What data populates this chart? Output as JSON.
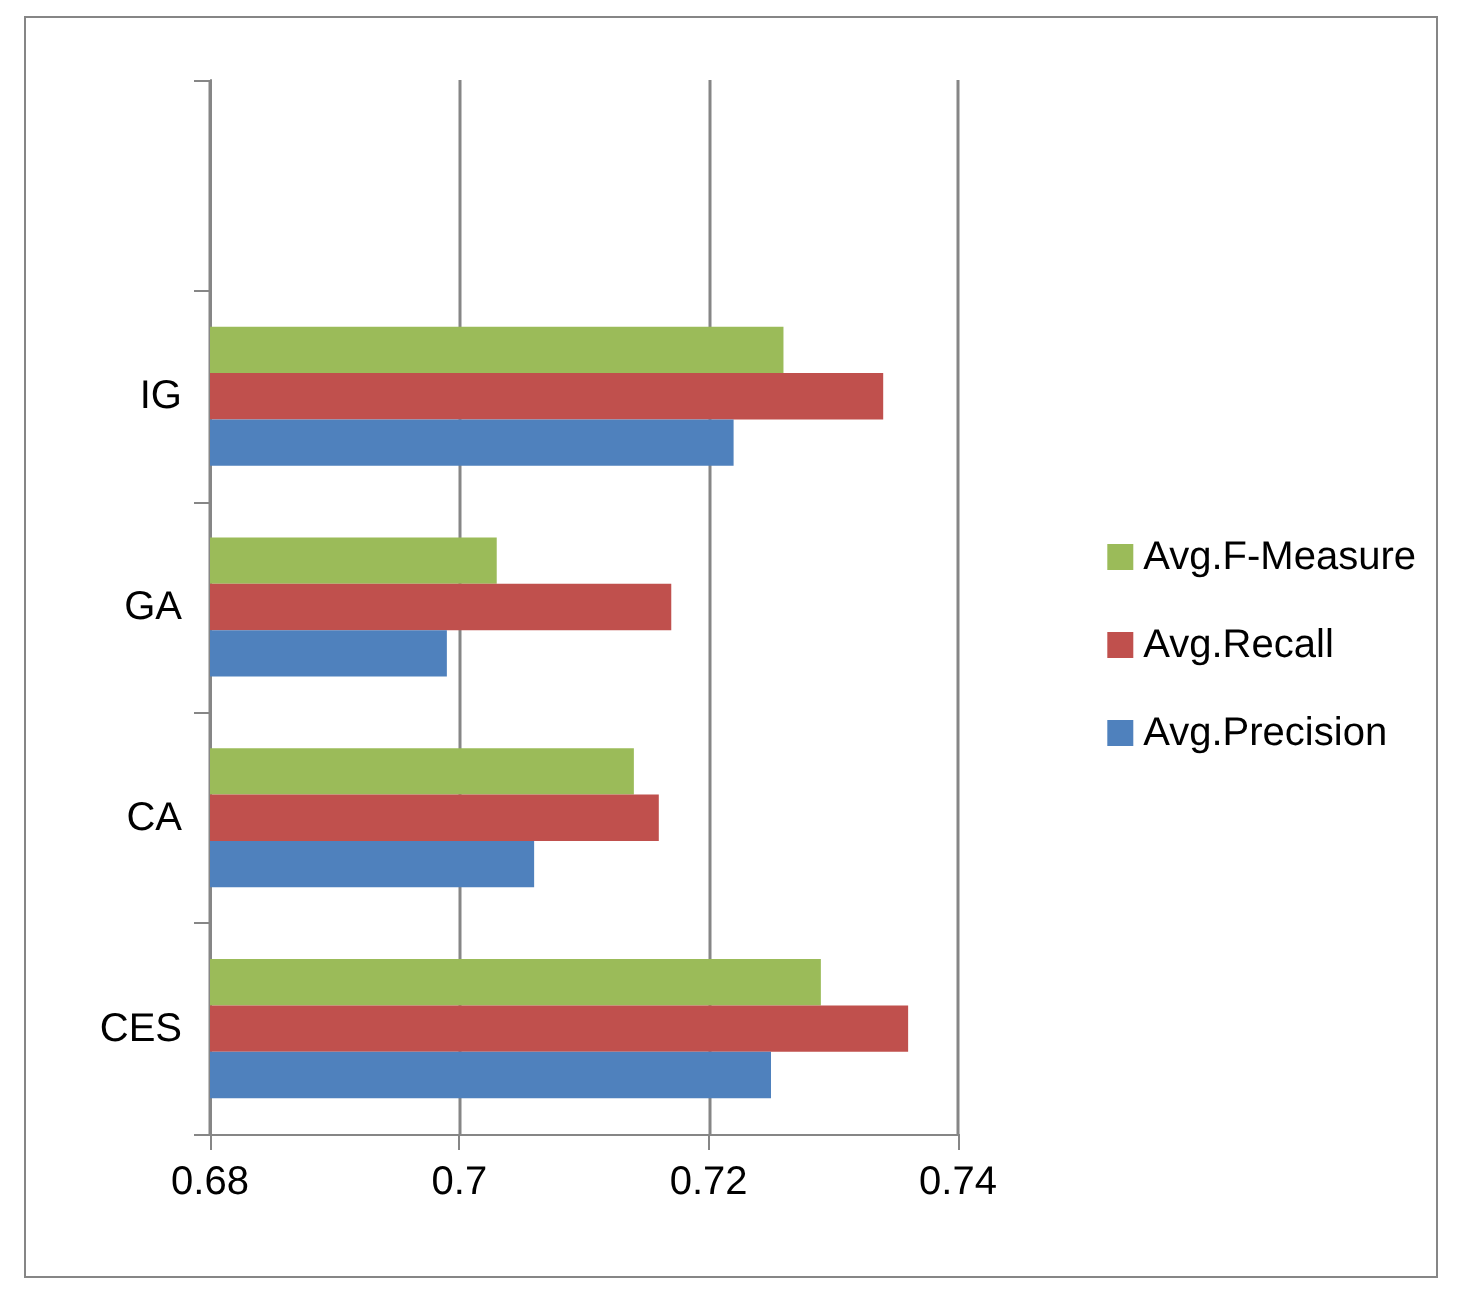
{
  "chart_data": {
    "type": "bar",
    "orientation": "horizontal",
    "categories": [
      null,
      "IG",
      "GA",
      "CA",
      "CES"
    ],
    "series": [
      {
        "name": "Avg.F-Measure",
        "color": "#9bbb59",
        "values": [
          null,
          0.726,
          0.703,
          0.714,
          0.729
        ]
      },
      {
        "name": "Avg.Recall",
        "color": "#c0504d",
        "values": [
          null,
          0.734,
          0.717,
          0.716,
          0.736
        ]
      },
      {
        "name": "Avg.Precision",
        "color": "#4f81bd",
        "values": [
          null,
          0.722,
          0.699,
          0.706,
          0.725
        ]
      }
    ],
    "xlim": [
      0.68,
      0.74
    ],
    "xticks": [
      0.68,
      0.7,
      0.72,
      0.74
    ],
    "grid": "x",
    "legend": "right"
  }
}
